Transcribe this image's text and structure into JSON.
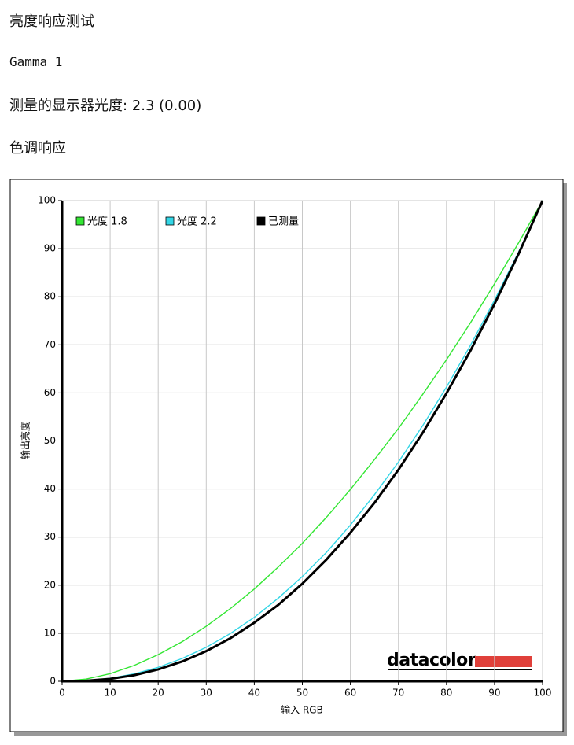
{
  "heading": "亮度响应测试",
  "gamma_label": "Gamma 1",
  "measured_label": "测量的显示器光度: 2.3 (0.00)",
  "section_label": "色调响应",
  "logo": "datacolor",
  "chart_data": {
    "type": "line",
    "x_label": "输入 RGB",
    "y_label": "输出亮度",
    "x": [
      0,
      5,
      10,
      15,
      20,
      25,
      30,
      35,
      40,
      45,
      50,
      55,
      60,
      65,
      70,
      75,
      80,
      85,
      90,
      95,
      100
    ],
    "series": [
      {
        "name": "光度 1.8",
        "color": "#33e633",
        "values": [
          0,
          0.46,
          1.58,
          3.29,
          5.55,
          8.25,
          11.45,
          15.1,
          19.2,
          23.8,
          28.7,
          34.1,
          39.9,
          46.1,
          52.6,
          59.6,
          66.9,
          74.6,
          82.7,
          91.2,
          100
        ]
      },
      {
        "name": "光度 2.2",
        "color": "#33d6e6",
        "values": [
          0,
          0.14,
          0.63,
          1.54,
          2.9,
          4.74,
          7.07,
          9.93,
          13.3,
          17.3,
          21.8,
          26.8,
          32.5,
          38.8,
          45.6,
          53.1,
          61.2,
          69.9,
          79.3,
          89.3,
          100
        ]
      },
      {
        "name": "已测量",
        "color": "#000000",
        "values": [
          0,
          0.1,
          0.5,
          1.27,
          2.47,
          4.12,
          6.27,
          8.94,
          12.2,
          15.9,
          20.3,
          25.3,
          30.9,
          37.1,
          44.0,
          51.6,
          59.9,
          68.8,
          78.5,
          88.9,
          100
        ]
      }
    ],
    "xlim": [
      0,
      100
    ],
    "xticks": [
      0,
      10,
      20,
      30,
      40,
      50,
      60,
      70,
      80,
      90,
      100
    ],
    "ylim": [
      0,
      100
    ],
    "yticks": [
      0,
      10,
      20,
      30,
      40,
      50,
      60,
      70,
      80,
      90,
      100
    ],
    "grid": true,
    "legend": "top-left"
  }
}
